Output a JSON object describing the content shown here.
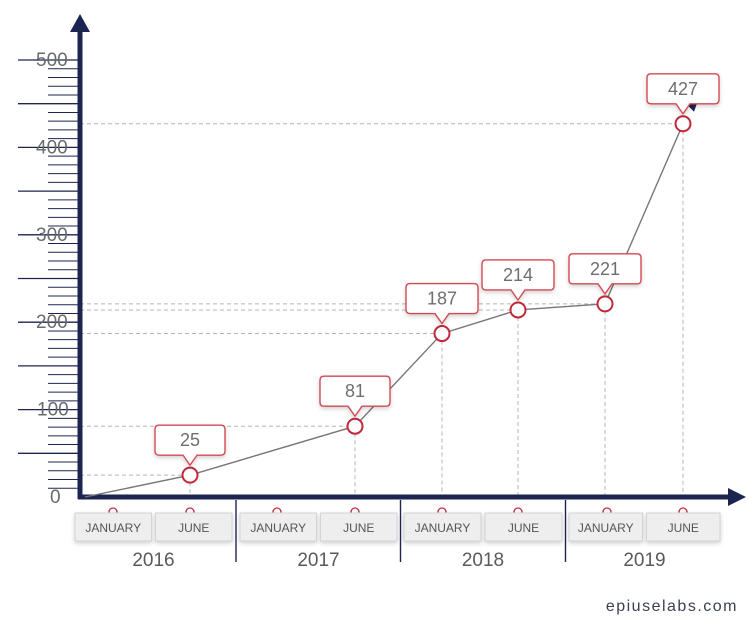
{
  "chart_data": {
    "type": "line",
    "title": "",
    "xlabel": "",
    "ylabel": "",
    "ylim": [
      0,
      500
    ],
    "y_ticks": [
      "0",
      "100",
      "200",
      "300",
      "400",
      "500"
    ],
    "years": [
      "2016",
      "2017",
      "2018",
      "2019"
    ],
    "months": [
      "JANUARY",
      "JUNE"
    ],
    "x": [
      "JANUARY 2016",
      "JUNE 2016",
      "JUNE 2017",
      "JANUARY 2018",
      "JUNE 2018",
      "JANUARY 2019",
      "JUNE 2019"
    ],
    "series": [
      {
        "values": [
          0,
          25,
          81,
          187,
          214,
          221,
          427
        ]
      }
    ],
    "data_labels": [
      "25",
      "81",
      "187",
      "214",
      "221",
      "427"
    ],
    "grid": false,
    "colors": {
      "axis": "#1c2550",
      "line": "#777777",
      "marker": "#c0293a",
      "callout_border": "#d24a55"
    }
  },
  "footer": {
    "brand": "epiuselabs.com"
  }
}
